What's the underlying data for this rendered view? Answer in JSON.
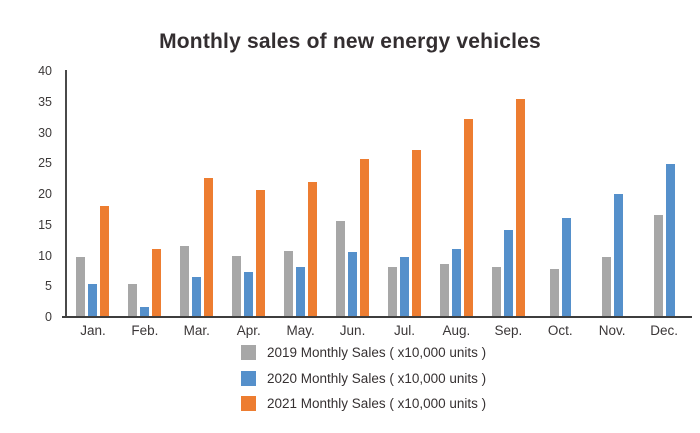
{
  "chart_data": {
    "type": "bar",
    "title": "Monthly sales of new energy vehicles",
    "categories": [
      "Jan.",
      "Feb.",
      "Mar.",
      "Apr.",
      "May.",
      "Jun.",
      "Jul.",
      "Aug.",
      "Sep.",
      "Oct.",
      "Nov.",
      "Dec."
    ],
    "series": [
      {
        "name": "2019 Monthly Sales ( x10,000 units )",
        "year": "2019",
        "color": "#A7A7A7",
        "values": [
          9.8,
          5.3,
          11.5,
          10.0,
          10.8,
          15.6,
          8.2,
          8.7,
          8.2,
          7.8,
          9.7,
          16.6
        ]
      },
      {
        "name": "2020 Monthly Sales ( x10,000 units )",
        "year": "2020",
        "color": "#5590CB",
        "values": [
          5.3,
          1.6,
          6.5,
          7.4,
          8.2,
          10.5,
          9.8,
          11.0,
          14.2,
          16.1,
          20.0,
          24.9
        ]
      },
      {
        "name": "2021 Monthly Sales ( x10,000 units )",
        "year": "2021",
        "color": "#ED7D31",
        "values": [
          18.0,
          11.0,
          22.6,
          20.7,
          21.9,
          25.7,
          27.2,
          32.2,
          35.4,
          null,
          null,
          null
        ]
      }
    ],
    "xlabel": "",
    "ylabel": "",
    "ylim": [
      0,
      40
    ],
    "yticks": [
      0,
      5,
      10,
      15,
      20,
      25,
      30,
      35,
      40
    ],
    "grid": false,
    "legend_position": "bottom"
  }
}
